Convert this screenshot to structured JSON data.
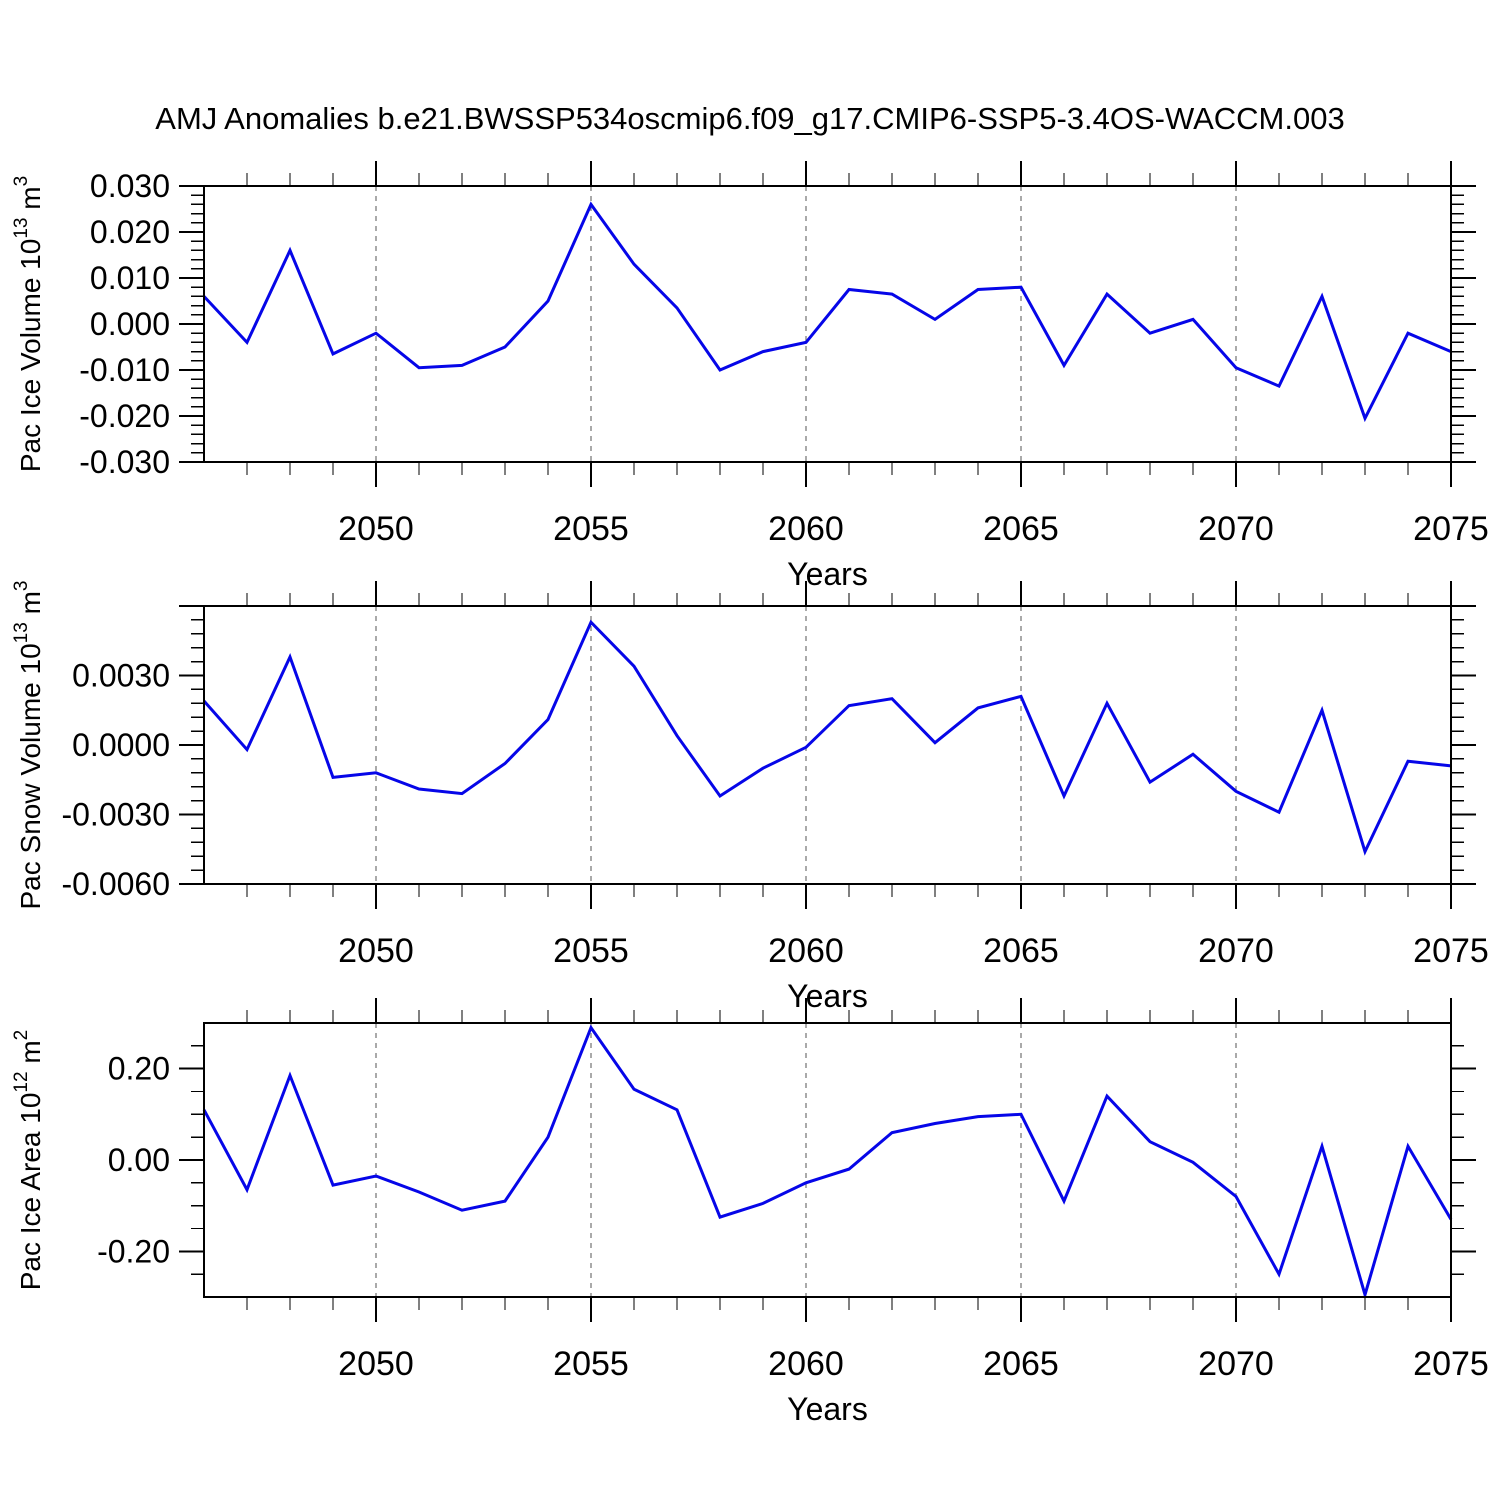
{
  "title": "AMJ Anomalies b.e21.BWSSP534oscmip6.f09_g17.CMIP6-SSP5-3.4OS-WACCM.003",
  "colors": {
    "line": "#0606e8",
    "grid": "#858585",
    "axis": "#000000",
    "text": "#000000",
    "background": "#ffffff"
  },
  "chart_data": [
    {
      "type": "line",
      "name": "pac-ice-volume",
      "ylabel_text": "Pac Ice Volume 10^13 m^3",
      "ylabel_segments": [
        {
          "t": "Pac Ice Volume 10",
          "sup": false
        },
        {
          "t": "13",
          "sup": true
        },
        {
          "t": " m",
          "sup": false
        },
        {
          "t": "3",
          "sup": true
        }
      ],
      "xlabel": "Years",
      "xlim": [
        2046,
        2075
      ],
      "ylim": [
        -0.03,
        0.03
      ],
      "x": [
        2046,
        2047,
        2048,
        2049,
        2050,
        2051,
        2052,
        2053,
        2054,
        2055,
        2056,
        2057,
        2058,
        2059,
        2060,
        2061,
        2062,
        2063,
        2064,
        2065,
        2066,
        2067,
        2068,
        2069,
        2070,
        2071,
        2072,
        2073,
        2074,
        2075
      ],
      "values": [
        0.006,
        -0.004,
        0.016,
        -0.0065,
        -0.002,
        -0.0095,
        -0.009,
        -0.005,
        0.005,
        0.026,
        0.013,
        0.0035,
        -0.01,
        -0.006,
        -0.004,
        0.0075,
        0.0065,
        0.001,
        0.0075,
        0.008,
        -0.009,
        0.0065,
        -0.002,
        0.001,
        -0.0095,
        -0.0135,
        0.006,
        -0.0205,
        -0.002,
        -0.006
      ],
      "ytick_major_step": 0.01,
      "ytick_minor_step": 0.002,
      "ytick_labels": [
        {
          "value": 0.03,
          "label": "0.030"
        },
        {
          "value": 0.02,
          "label": "0.020"
        },
        {
          "value": 0.01,
          "label": "0.010"
        },
        {
          "value": 0.0,
          "label": "0.000"
        },
        {
          "value": -0.01,
          "label": "-0.010"
        },
        {
          "value": -0.02,
          "label": "-0.020"
        },
        {
          "value": -0.03,
          "label": "-0.030"
        }
      ],
      "xticks": [
        {
          "value": 2050,
          "label": "2050"
        },
        {
          "value": 2055,
          "label": "2055"
        },
        {
          "value": 2060,
          "label": "2060"
        },
        {
          "value": 2065,
          "label": "2065"
        },
        {
          "value": 2070,
          "label": "2070"
        },
        {
          "value": 2075,
          "label": "2075"
        }
      ],
      "grid_x": [
        2050,
        2055,
        2060,
        2065,
        2070
      ]
    },
    {
      "type": "line",
      "name": "pac-snow-volume",
      "ylabel_text": "Pac Snow Volume 10^13 m^3",
      "ylabel_segments": [
        {
          "t": "Pac Snow Volume 10",
          "sup": false
        },
        {
          "t": "13",
          "sup": true
        },
        {
          "t": " m",
          "sup": false
        },
        {
          "t": "3",
          "sup": true
        }
      ],
      "xlabel": "Years",
      "xlim": [
        2046,
        2075
      ],
      "ylim": [
        -0.006,
        0.006
      ],
      "x": [
        2046,
        2047,
        2048,
        2049,
        2050,
        2051,
        2052,
        2053,
        2054,
        2055,
        2056,
        2057,
        2058,
        2059,
        2060,
        2061,
        2062,
        2063,
        2064,
        2065,
        2066,
        2067,
        2068,
        2069,
        2070,
        2071,
        2072,
        2073,
        2074,
        2075
      ],
      "values": [
        0.0019,
        -0.0002,
        0.0038,
        -0.0014,
        -0.0012,
        -0.0019,
        -0.0021,
        -0.0008,
        0.0011,
        0.0053,
        0.0034,
        0.0004,
        -0.0022,
        -0.001,
        -0.0001,
        0.0017,
        0.002,
        0.0001,
        0.0016,
        0.0021,
        -0.0022,
        0.0018,
        -0.0016,
        -0.0004,
        -0.002,
        -0.0029,
        0.0015,
        -0.0046,
        -0.0007,
        -0.0009
      ],
      "ytick_major_step": 0.003,
      "ytick_minor_step": 0.0006,
      "ytick_labels": [
        {
          "value": 0.003,
          "label": "0.0030"
        },
        {
          "value": 0.0,
          "label": "0.0000"
        },
        {
          "value": -0.003,
          "label": "-0.0030"
        },
        {
          "value": -0.006,
          "label": "-0.0060"
        }
      ],
      "xticks": [
        {
          "value": 2050,
          "label": "2050"
        },
        {
          "value": 2055,
          "label": "2055"
        },
        {
          "value": 2060,
          "label": "2060"
        },
        {
          "value": 2065,
          "label": "2065"
        },
        {
          "value": 2070,
          "label": "2070"
        },
        {
          "value": 2075,
          "label": "2075"
        }
      ],
      "grid_x": [
        2050,
        2055,
        2060,
        2065,
        2070
      ]
    },
    {
      "type": "line",
      "name": "pac-ice-area",
      "ylabel_text": "Pac Ice Area 10^12 m^2",
      "ylabel_segments": [
        {
          "t": "Pac Ice Area 10",
          "sup": false
        },
        {
          "t": "12",
          "sup": true
        },
        {
          "t": " m",
          "sup": false
        },
        {
          "t": "2",
          "sup": true
        }
      ],
      "xlabel": "Years",
      "xlim": [
        2046,
        2075
      ],
      "ylim": [
        -0.3,
        0.3
      ],
      "x": [
        2046,
        2047,
        2048,
        2049,
        2050,
        2051,
        2052,
        2053,
        2054,
        2055,
        2056,
        2057,
        2058,
        2059,
        2060,
        2061,
        2062,
        2063,
        2064,
        2065,
        2066,
        2067,
        2068,
        2069,
        2070,
        2071,
        2072,
        2073,
        2074,
        2075
      ],
      "values": [
        0.11,
        -0.065,
        0.185,
        -0.055,
        -0.035,
        -0.07,
        -0.11,
        -0.09,
        0.05,
        0.29,
        0.155,
        0.11,
        -0.125,
        -0.095,
        -0.05,
        -0.02,
        0.06,
        0.08,
        0.095,
        0.1,
        -0.09,
        0.14,
        0.04,
        -0.005,
        -0.08,
        -0.25,
        0.03,
        -0.295,
        0.03,
        -0.13
      ],
      "ytick_major_step": 0.2,
      "ytick_minor_step": 0.05,
      "ytick_labels": [
        {
          "value": 0.2,
          "label": "0.20"
        },
        {
          "value": 0.0,
          "label": "0.00"
        },
        {
          "value": -0.2,
          "label": "-0.20"
        }
      ],
      "xticks": [
        {
          "value": 2050,
          "label": "2050"
        },
        {
          "value": 2055,
          "label": "2055"
        },
        {
          "value": 2060,
          "label": "2060"
        },
        {
          "value": 2065,
          "label": "2065"
        },
        {
          "value": 2070,
          "label": "2070"
        },
        {
          "value": 2075,
          "label": "2075"
        }
      ],
      "grid_x": [
        2050,
        2055,
        2060,
        2065,
        2070
      ]
    }
  ]
}
